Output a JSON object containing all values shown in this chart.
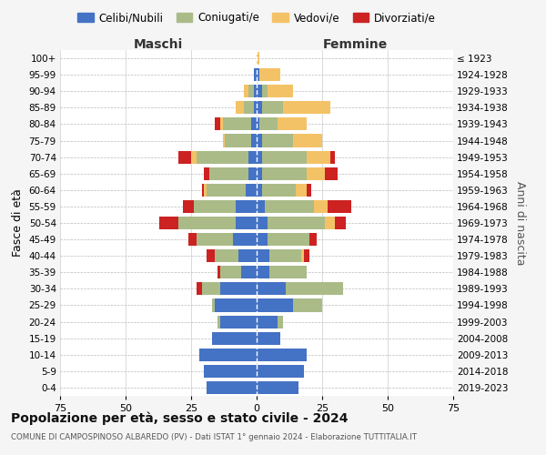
{
  "age_groups": [
    "0-4",
    "5-9",
    "10-14",
    "15-19",
    "20-24",
    "25-29",
    "30-34",
    "35-39",
    "40-44",
    "45-49",
    "50-54",
    "55-59",
    "60-64",
    "65-69",
    "70-74",
    "75-79",
    "80-84",
    "85-89",
    "90-94",
    "95-99",
    "100+"
  ],
  "birth_years": [
    "2019-2023",
    "2014-2018",
    "2009-2013",
    "2004-2008",
    "1999-2003",
    "1994-1998",
    "1989-1993",
    "1984-1988",
    "1979-1983",
    "1974-1978",
    "1969-1973",
    "1964-1968",
    "1959-1963",
    "1954-1958",
    "1949-1953",
    "1944-1948",
    "1939-1943",
    "1934-1938",
    "1929-1933",
    "1924-1928",
    "≤ 1923"
  ],
  "males": {
    "celibi": [
      19,
      20,
      22,
      17,
      14,
      16,
      14,
      6,
      7,
      9,
      8,
      8,
      4,
      3,
      3,
      2,
      2,
      1,
      1,
      1,
      0
    ],
    "coniugati": [
      0,
      0,
      0,
      0,
      1,
      1,
      7,
      8,
      9,
      14,
      22,
      16,
      15,
      15,
      20,
      10,
      11,
      4,
      2,
      0,
      0
    ],
    "vedovi": [
      0,
      0,
      0,
      0,
      0,
      0,
      0,
      0,
      0,
      0,
      0,
      0,
      1,
      0,
      2,
      1,
      1,
      3,
      2,
      0,
      0
    ],
    "divorziati": [
      0,
      0,
      0,
      0,
      0,
      0,
      2,
      1,
      3,
      3,
      7,
      4,
      1,
      2,
      5,
      0,
      2,
      0,
      0,
      0,
      0
    ]
  },
  "females": {
    "nubili": [
      16,
      18,
      19,
      9,
      8,
      14,
      11,
      5,
      5,
      4,
      4,
      3,
      2,
      2,
      2,
      2,
      1,
      2,
      2,
      1,
      0
    ],
    "coniugate": [
      0,
      0,
      0,
      0,
      2,
      11,
      22,
      14,
      12,
      16,
      22,
      19,
      13,
      17,
      17,
      12,
      7,
      8,
      2,
      0,
      0
    ],
    "vedove": [
      0,
      0,
      0,
      0,
      0,
      0,
      0,
      0,
      1,
      0,
      4,
      5,
      4,
      7,
      9,
      11,
      11,
      18,
      10,
      8,
      1
    ],
    "divorziate": [
      0,
      0,
      0,
      0,
      0,
      0,
      0,
      0,
      2,
      3,
      4,
      9,
      2,
      5,
      2,
      0,
      0,
      0,
      0,
      0,
      0
    ]
  },
  "color_celibi": "#4472C4",
  "color_coniugati": "#AABB88",
  "color_vedovi": "#F4C266",
  "color_divorziati": "#CC2222",
  "title": "Popolazione per età, sesso e stato civile - 2024",
  "subtitle": "COMUNE DI CAMPOSPINOSO ALBAREDO (PV) - Dati ISTAT 1° gennaio 2024 - Elaborazione TUTTITALIA.IT",
  "xlabel_maschi": "Maschi",
  "xlabel_femmine": "Femmine",
  "ylabel_left": "Fasce di età",
  "ylabel_right": "Anni di nascita",
  "xlim": 75,
  "legend_labels": [
    "Celibi/Nubili",
    "Coniugati/e",
    "Vedovi/e",
    "Divorziati/e"
  ],
  "bg_color": "#f5f5f5",
  "plot_bg_color": "#ffffff"
}
